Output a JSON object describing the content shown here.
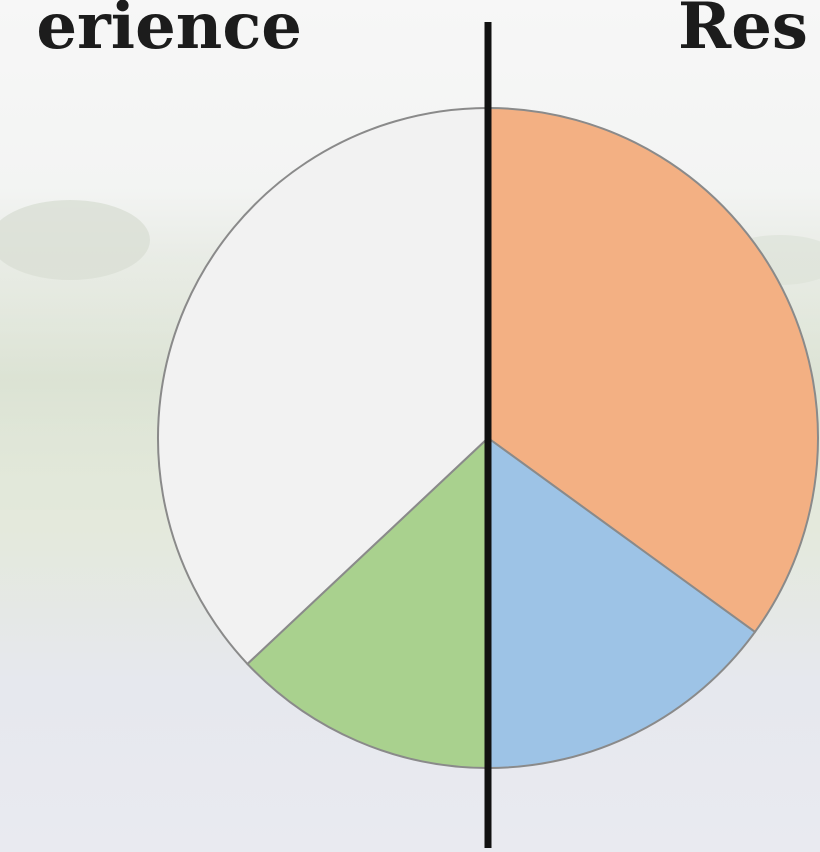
{
  "chart_data": {
    "type": "pie",
    "title_left": "erience",
    "title_right": "Res",
    "values": [
      35,
      15,
      13,
      37
    ],
    "colors": [
      "#f3b083",
      "#9dc3e6",
      "#a9d18e",
      "#f2f2f2"
    ],
    "start_angle": 0,
    "direction": "clockwise"
  }
}
